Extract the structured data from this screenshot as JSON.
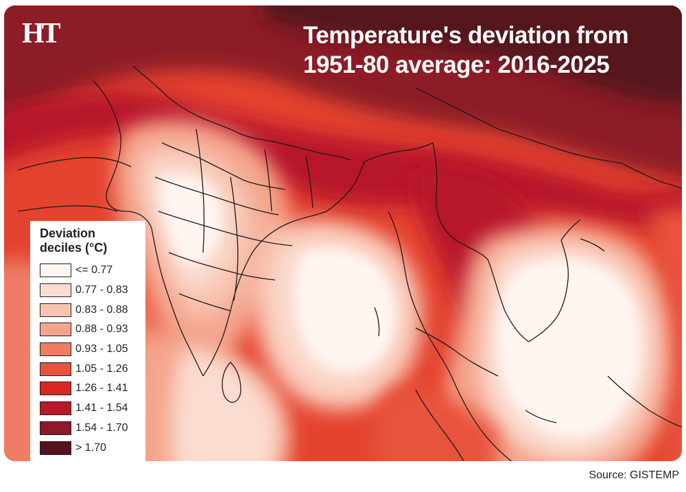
{
  "logo": "HT",
  "title": {
    "line1": "Temperature's deviation from",
    "line2": "1951-80 average: 2016-2025"
  },
  "legend": {
    "title_line1": "Deviation",
    "title_line2": "deciles (°C)",
    "items": [
      {
        "label": "<= 0.77",
        "color": "#fff5f1"
      },
      {
        "label": "0.77 - 0.83",
        "color": "#fbdcd0"
      },
      {
        "label": "0.83 - 0.88",
        "color": "#f8c3b1"
      },
      {
        "label": "0.88 - 0.93",
        "color": "#f4a48c"
      },
      {
        "label": "0.93 - 1.05",
        "color": "#ee7d63"
      },
      {
        "label": "1.05 - 1.26",
        "color": "#e8533d"
      },
      {
        "label": "1.26 - 1.41",
        "color": "#d92824"
      },
      {
        "label": "1.41 - 1.54",
        "color": "#b8192a"
      },
      {
        "label": "1.54 - 1.70",
        "color": "#8c1a28"
      },
      {
        "label": "> 1.70",
        "color": "#55141c"
      }
    ]
  },
  "source": "Source: GISTEMP"
}
